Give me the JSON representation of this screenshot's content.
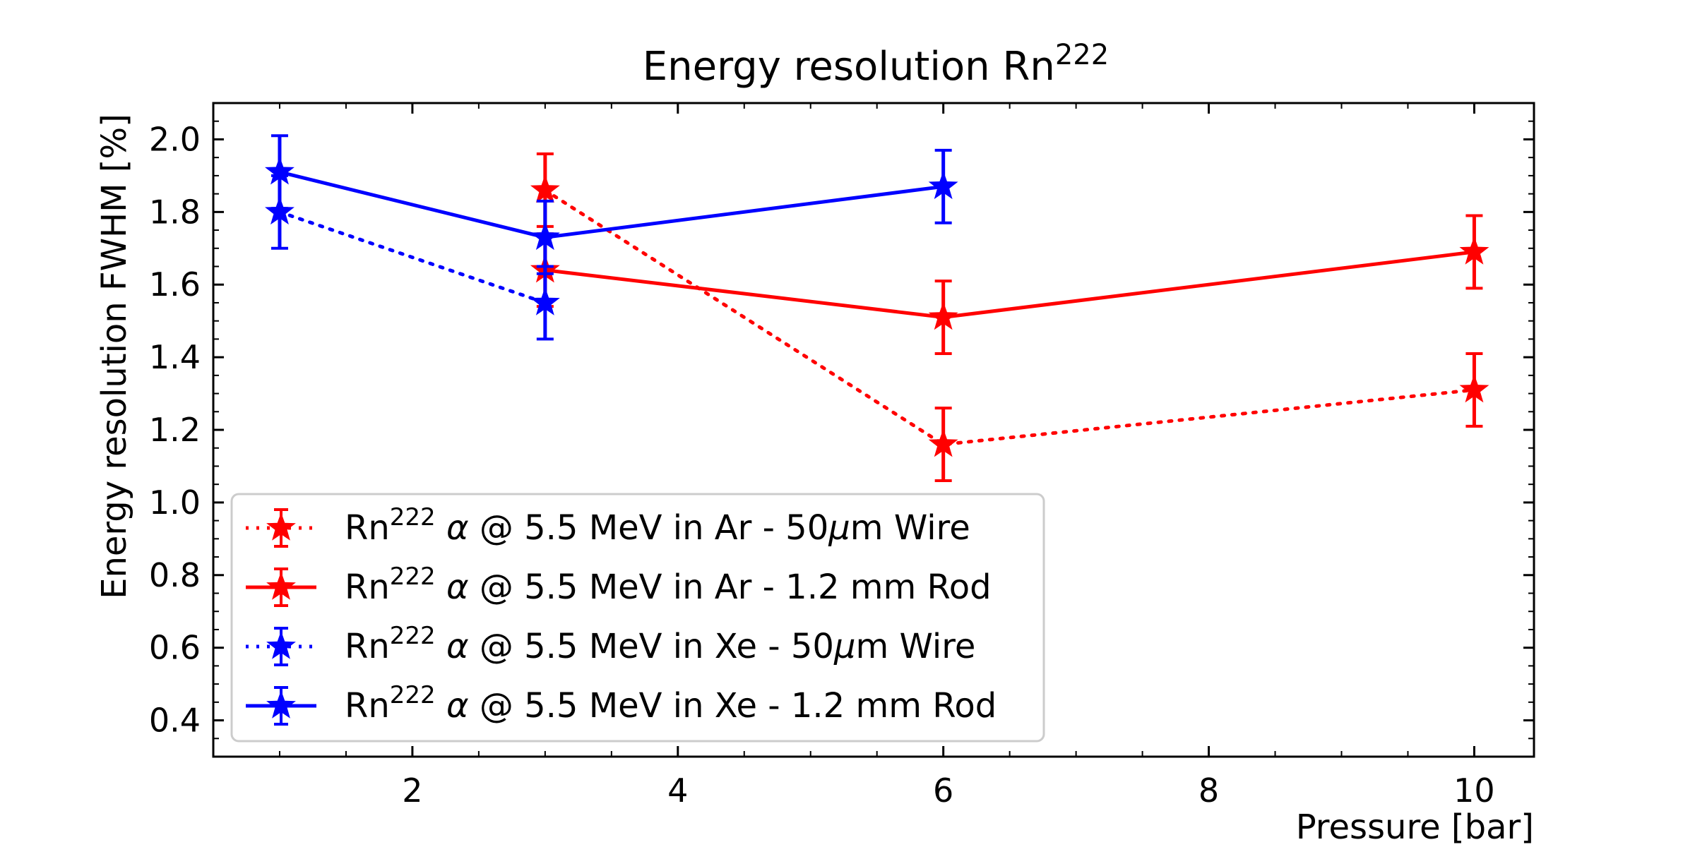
{
  "chart_data": {
    "type": "line",
    "title": "Energy resolution Rn",
    "title_sup": "222",
    "xlabel": "Pressure [bar]",
    "ylabel": "Energy resolution FWHM [%]",
    "xlim": [
      0.5,
      10.45
    ],
    "ylim": [
      0.3,
      2.1
    ],
    "xticks": [
      2,
      4,
      6,
      8,
      10
    ],
    "yticks": [
      0.4,
      0.6,
      0.8,
      1.0,
      1.2,
      1.4,
      1.6,
      1.8,
      2.0
    ],
    "xtick_labels": [
      "2",
      "4",
      "6",
      "8",
      "10"
    ],
    "ytick_labels": [
      "0.4",
      "0.6",
      "0.8",
      "1.0",
      "1.2",
      "1.4",
      "1.6",
      "1.8",
      "2.0"
    ],
    "legend_position": "lower-left",
    "series": [
      {
        "name_prefix": "Rn",
        "name_sup": "222",
        "name_greek": "α",
        "name_mid": " @ 5.5 MeV in Ar - 50",
        "name_mu": "μ",
        "name_tail": "m Wire",
        "color": "#ff0000",
        "linestyle": "dotted",
        "x": [
          3,
          6,
          10
        ],
        "y": [
          1.86,
          1.16,
          1.31
        ],
        "yerr": [
          0.1,
          0.1,
          0.1
        ]
      },
      {
        "name_prefix": "Rn",
        "name_sup": "222",
        "name_greek": "α",
        "name_mid": " @ 5.5 MeV in Ar - 1.2 mm Rod",
        "name_mu": "",
        "name_tail": "",
        "color": "#ff0000",
        "linestyle": "solid",
        "x": [
          3,
          6,
          10
        ],
        "y": [
          1.64,
          1.51,
          1.69
        ],
        "yerr": [
          0.1,
          0.1,
          0.1
        ]
      },
      {
        "name_prefix": "Rn",
        "name_sup": "222",
        "name_greek": "α",
        "name_mid": " @ 5.5 MeV in Xe - 50",
        "name_mu": "μ",
        "name_tail": "m Wire",
        "color": "#0000ff",
        "linestyle": "dotted",
        "x": [
          1,
          3
        ],
        "y": [
          1.8,
          1.55
        ],
        "yerr": [
          0.1,
          0.1
        ]
      },
      {
        "name_prefix": "Rn",
        "name_sup": "222",
        "name_greek": "α",
        "name_mid": " @ 5.5 MeV in Xe - 1.2 mm Rod",
        "name_mu": "",
        "name_tail": "",
        "color": "#0000ff",
        "linestyle": "solid",
        "x": [
          1,
          3,
          6
        ],
        "y": [
          1.91,
          1.73,
          1.87
        ],
        "yerr": [
          0.1,
          0.1,
          0.1
        ]
      }
    ]
  }
}
